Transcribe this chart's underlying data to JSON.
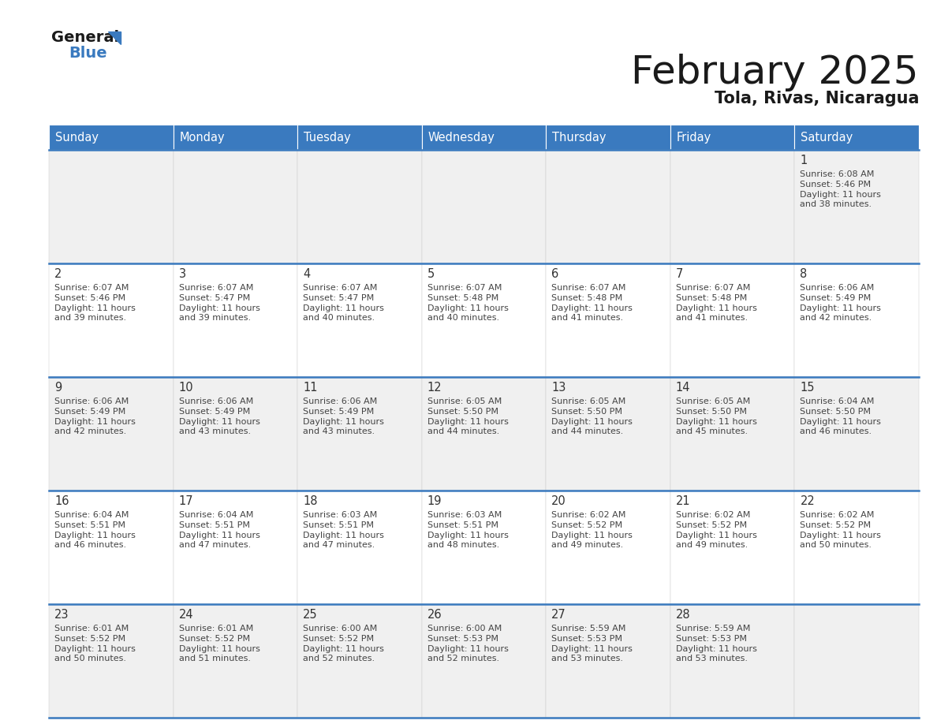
{
  "title": "February 2025",
  "subtitle": "Tola, Rivas, Nicaragua",
  "header_bg_color": "#3a7abf",
  "header_text_color": "#ffffff",
  "cell_bg_even": "#f0f0f0",
  "cell_bg_odd": "#ffffff",
  "title_color": "#1a1a1a",
  "subtitle_color": "#1a1a1a",
  "border_color": "#3a7abf",
  "day_number_color": "#333333",
  "cell_text_color": "#444444",
  "day_headers": [
    "Sunday",
    "Monday",
    "Tuesday",
    "Wednesday",
    "Thursday",
    "Friday",
    "Saturday"
  ],
  "days": [
    {
      "day": 1,
      "col": 6,
      "row": 0,
      "sunrise": "6:08 AM",
      "sunset": "5:46 PM",
      "daylight_hours": 11,
      "daylight_minutes": 38
    },
    {
      "day": 2,
      "col": 0,
      "row": 1,
      "sunrise": "6:07 AM",
      "sunset": "5:46 PM",
      "daylight_hours": 11,
      "daylight_minutes": 39
    },
    {
      "day": 3,
      "col": 1,
      "row": 1,
      "sunrise": "6:07 AM",
      "sunset": "5:47 PM",
      "daylight_hours": 11,
      "daylight_minutes": 39
    },
    {
      "day": 4,
      "col": 2,
      "row": 1,
      "sunrise": "6:07 AM",
      "sunset": "5:47 PM",
      "daylight_hours": 11,
      "daylight_minutes": 40
    },
    {
      "day": 5,
      "col": 3,
      "row": 1,
      "sunrise": "6:07 AM",
      "sunset": "5:48 PM",
      "daylight_hours": 11,
      "daylight_minutes": 40
    },
    {
      "day": 6,
      "col": 4,
      "row": 1,
      "sunrise": "6:07 AM",
      "sunset": "5:48 PM",
      "daylight_hours": 11,
      "daylight_minutes": 41
    },
    {
      "day": 7,
      "col": 5,
      "row": 1,
      "sunrise": "6:07 AM",
      "sunset": "5:48 PM",
      "daylight_hours": 11,
      "daylight_minutes": 41
    },
    {
      "day": 8,
      "col": 6,
      "row": 1,
      "sunrise": "6:06 AM",
      "sunset": "5:49 PM",
      "daylight_hours": 11,
      "daylight_minutes": 42
    },
    {
      "day": 9,
      "col": 0,
      "row": 2,
      "sunrise": "6:06 AM",
      "sunset": "5:49 PM",
      "daylight_hours": 11,
      "daylight_minutes": 42
    },
    {
      "day": 10,
      "col": 1,
      "row": 2,
      "sunrise": "6:06 AM",
      "sunset": "5:49 PM",
      "daylight_hours": 11,
      "daylight_minutes": 43
    },
    {
      "day": 11,
      "col": 2,
      "row": 2,
      "sunrise": "6:06 AM",
      "sunset": "5:49 PM",
      "daylight_hours": 11,
      "daylight_minutes": 43
    },
    {
      "day": 12,
      "col": 3,
      "row": 2,
      "sunrise": "6:05 AM",
      "sunset": "5:50 PM",
      "daylight_hours": 11,
      "daylight_minutes": 44
    },
    {
      "day": 13,
      "col": 4,
      "row": 2,
      "sunrise": "6:05 AM",
      "sunset": "5:50 PM",
      "daylight_hours": 11,
      "daylight_minutes": 44
    },
    {
      "day": 14,
      "col": 5,
      "row": 2,
      "sunrise": "6:05 AM",
      "sunset": "5:50 PM",
      "daylight_hours": 11,
      "daylight_minutes": 45
    },
    {
      "day": 15,
      "col": 6,
      "row": 2,
      "sunrise": "6:04 AM",
      "sunset": "5:50 PM",
      "daylight_hours": 11,
      "daylight_minutes": 46
    },
    {
      "day": 16,
      "col": 0,
      "row": 3,
      "sunrise": "6:04 AM",
      "sunset": "5:51 PM",
      "daylight_hours": 11,
      "daylight_minutes": 46
    },
    {
      "day": 17,
      "col": 1,
      "row": 3,
      "sunrise": "6:04 AM",
      "sunset": "5:51 PM",
      "daylight_hours": 11,
      "daylight_minutes": 47
    },
    {
      "day": 18,
      "col": 2,
      "row": 3,
      "sunrise": "6:03 AM",
      "sunset": "5:51 PM",
      "daylight_hours": 11,
      "daylight_minutes": 47
    },
    {
      "day": 19,
      "col": 3,
      "row": 3,
      "sunrise": "6:03 AM",
      "sunset": "5:51 PM",
      "daylight_hours": 11,
      "daylight_minutes": 48
    },
    {
      "day": 20,
      "col": 4,
      "row": 3,
      "sunrise": "6:02 AM",
      "sunset": "5:52 PM",
      "daylight_hours": 11,
      "daylight_minutes": 49
    },
    {
      "day": 21,
      "col": 5,
      "row": 3,
      "sunrise": "6:02 AM",
      "sunset": "5:52 PM",
      "daylight_hours": 11,
      "daylight_minutes": 49
    },
    {
      "day": 22,
      "col": 6,
      "row": 3,
      "sunrise": "6:02 AM",
      "sunset": "5:52 PM",
      "daylight_hours": 11,
      "daylight_minutes": 50
    },
    {
      "day": 23,
      "col": 0,
      "row": 4,
      "sunrise": "6:01 AM",
      "sunset": "5:52 PM",
      "daylight_hours": 11,
      "daylight_minutes": 50
    },
    {
      "day": 24,
      "col": 1,
      "row": 4,
      "sunrise": "6:01 AM",
      "sunset": "5:52 PM",
      "daylight_hours": 11,
      "daylight_minutes": 51
    },
    {
      "day": 25,
      "col": 2,
      "row": 4,
      "sunrise": "6:00 AM",
      "sunset": "5:52 PM",
      "daylight_hours": 11,
      "daylight_minutes": 52
    },
    {
      "day": 26,
      "col": 3,
      "row": 4,
      "sunrise": "6:00 AM",
      "sunset": "5:53 PM",
      "daylight_hours": 11,
      "daylight_minutes": 52
    },
    {
      "day": 27,
      "col": 4,
      "row": 4,
      "sunrise": "5:59 AM",
      "sunset": "5:53 PM",
      "daylight_hours": 11,
      "daylight_minutes": 53
    },
    {
      "day": 28,
      "col": 5,
      "row": 4,
      "sunrise": "5:59 AM",
      "sunset": "5:53 PM",
      "daylight_hours": 11,
      "daylight_minutes": 53
    }
  ]
}
